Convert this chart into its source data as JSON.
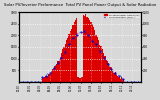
{
  "title": "Solar PV/Inverter Performance  Total PV Panel Power Output & Solar Radiation",
  "title_fontsize": 2.8,
  "bg_color": "#d8d8d8",
  "plot_bg_color": "#d8d8d8",
  "grid_color": "#ffffff",
  "bar_color": "#dd0000",
  "line_color": "#0000cc",
  "bar_edge_color": "#cc0000",
  "ylim_left": [
    0,
    3000
  ],
  "ylim_right": [
    0,
    1200
  ],
  "yticks_left": [
    500,
    1000,
    1500,
    2000,
    2500,
    3000
  ],
  "yticks_right": [
    200,
    400,
    600,
    800,
    1000,
    1200
  ],
  "xlim": [
    0,
    95
  ],
  "legend_labels": [
    "PV Panel Power Output (W)",
    "Solar Radiation (W/m²)"
  ],
  "legend_colors": [
    "#dd0000",
    "#0000cc"
  ],
  "n_points": 96
}
